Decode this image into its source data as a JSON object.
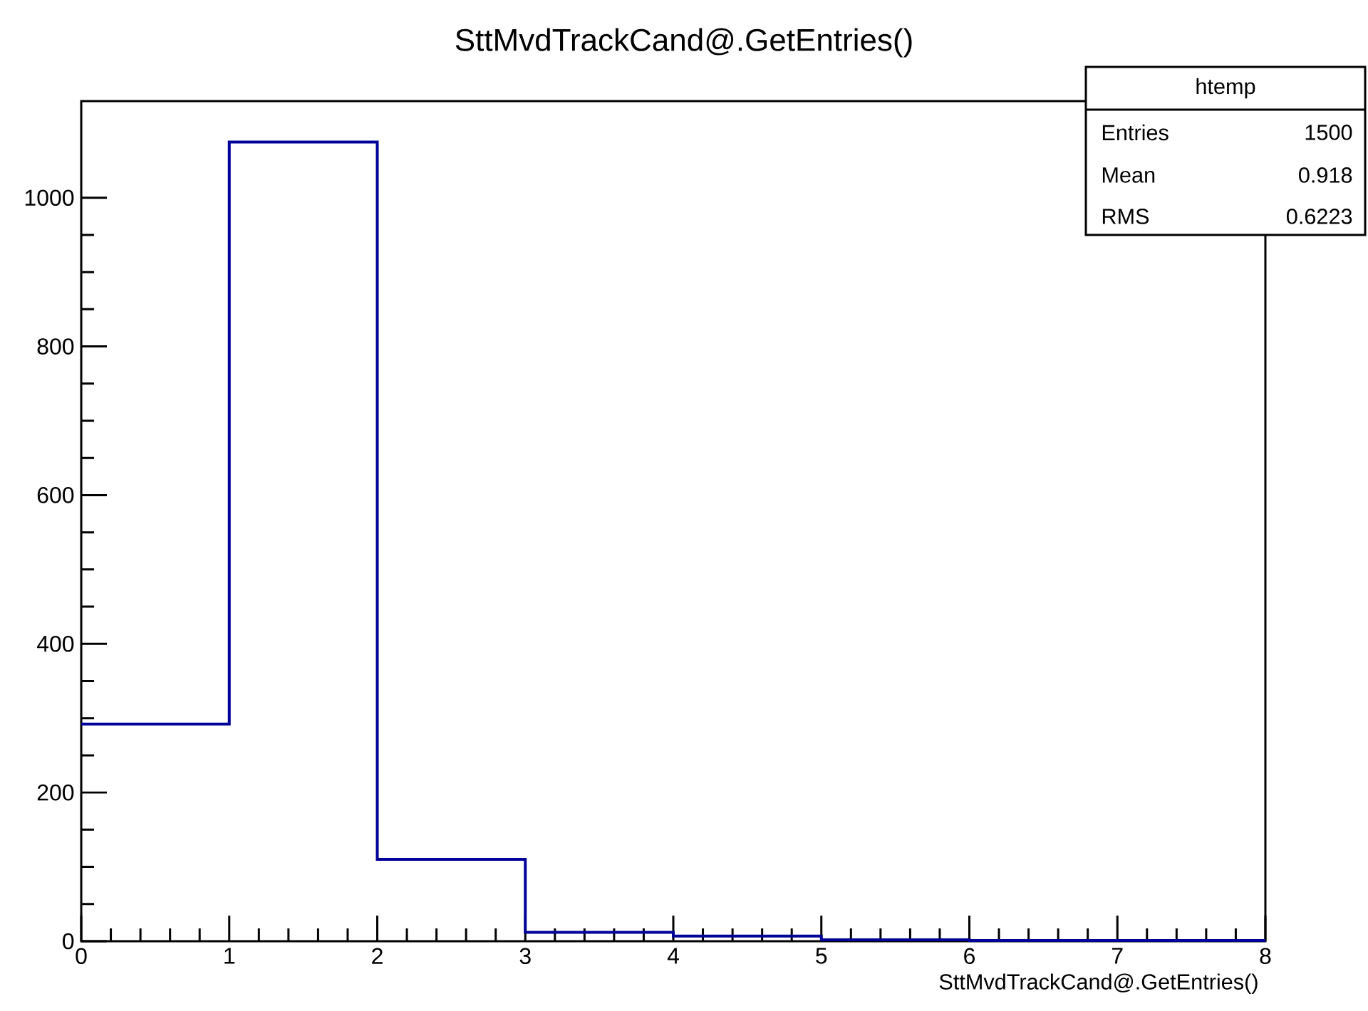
{
  "chart_data": {
    "type": "histogram",
    "title": "SttMvdTrackCand@.GetEntries()",
    "xlabel": "SttMvdTrackCand@.GetEntries()",
    "bins": [
      0,
      1,
      2,
      3,
      4,
      5,
      6,
      7,
      8
    ],
    "values": [
      292,
      1075,
      110,
      12,
      7,
      2,
      1,
      1
    ],
    "color": "#000099",
    "xlim": [
      0,
      8
    ],
    "ylim": [
      0,
      1130
    ],
    "xticks": [
      0,
      1,
      2,
      3,
      4,
      5,
      6,
      7,
      8
    ],
    "yticks": [
      0,
      200,
      400,
      600,
      800,
      1000
    ],
    "annotations": [
      "htemp",
      "Entries",
      "1500",
      "Mean",
      "0.918",
      "RMS",
      "0.6223"
    ]
  }
}
